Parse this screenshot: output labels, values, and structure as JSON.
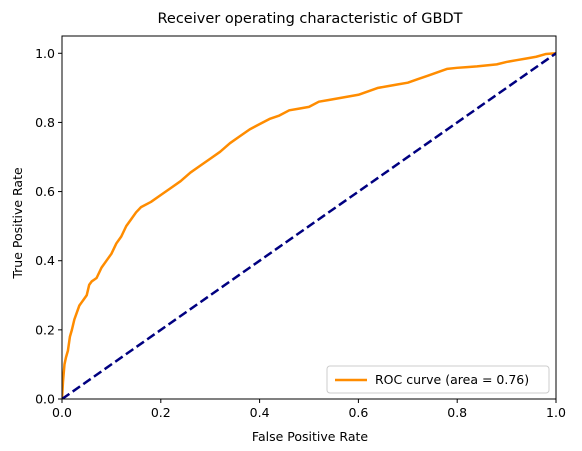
{
  "chart_data": {
    "type": "line",
    "title": "Receiver operating characteristic of GBDT",
    "xlabel": "False Positive Rate",
    "ylabel": "True Positive Rate",
    "xlim": [
      0.0,
      1.0
    ],
    "ylim": [
      0.0,
      1.05
    ],
    "xticks": [
      "0.0",
      "0.2",
      "0.4",
      "0.6",
      "0.8",
      "1.0"
    ],
    "yticks": [
      "0.0",
      "0.2",
      "0.4",
      "0.6",
      "0.8",
      "1.0"
    ],
    "grid": false,
    "legend": {
      "placement": "lower-right",
      "entries": [
        "ROC curve (area = 0.76)"
      ]
    },
    "colors": {
      "roc": "#ff8c00",
      "diagonal": "#000080"
    },
    "series": [
      {
        "name": "ROC curve (area = 0.76)",
        "style": "solid",
        "x": [
          0.0,
          0.002,
          0.005,
          0.008,
          0.012,
          0.016,
          0.02,
          0.025,
          0.03,
          0.035,
          0.04,
          0.045,
          0.05,
          0.055,
          0.06,
          0.065,
          0.07,
          0.08,
          0.09,
          0.1,
          0.11,
          0.12,
          0.13,
          0.14,
          0.15,
          0.16,
          0.18,
          0.2,
          0.22,
          0.24,
          0.26,
          0.28,
          0.3,
          0.32,
          0.34,
          0.36,
          0.38,
          0.4,
          0.42,
          0.44,
          0.46,
          0.48,
          0.5,
          0.52,
          0.54,
          0.56,
          0.58,
          0.6,
          0.62,
          0.64,
          0.66,
          0.68,
          0.7,
          0.72,
          0.74,
          0.76,
          0.78,
          0.8,
          0.82,
          0.84,
          0.86,
          0.88,
          0.9,
          0.92,
          0.94,
          0.96,
          0.98,
          1.0
        ],
        "y": [
          0.0,
          0.05,
          0.1,
          0.12,
          0.14,
          0.18,
          0.2,
          0.23,
          0.25,
          0.27,
          0.28,
          0.29,
          0.3,
          0.33,
          0.34,
          0.345,
          0.35,
          0.38,
          0.4,
          0.42,
          0.45,
          0.47,
          0.5,
          0.52,
          0.54,
          0.555,
          0.57,
          0.59,
          0.61,
          0.63,
          0.655,
          0.675,
          0.695,
          0.715,
          0.74,
          0.76,
          0.78,
          0.795,
          0.81,
          0.82,
          0.835,
          0.84,
          0.845,
          0.86,
          0.865,
          0.87,
          0.875,
          0.88,
          0.89,
          0.9,
          0.905,
          0.91,
          0.915,
          0.925,
          0.935,
          0.945,
          0.955,
          0.958,
          0.96,
          0.962,
          0.965,
          0.968,
          0.975,
          0.98,
          0.985,
          0.99,
          0.998,
          1.0
        ]
      },
      {
        "style": "dashed",
        "x": [
          0.0,
          1.0
        ],
        "y": [
          0.0,
          1.0
        ]
      }
    ]
  }
}
